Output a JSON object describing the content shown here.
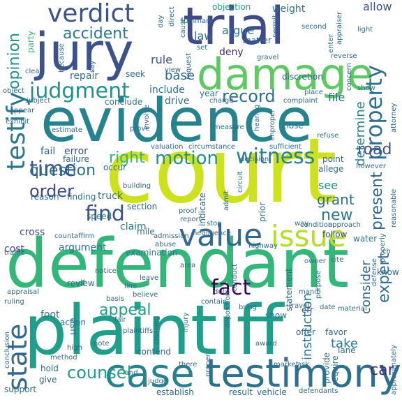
{
  "words": [
    {
      "text": "court",
      "color": "#cde11d",
      "v": false
    },
    {
      "text": "defendant",
      "color": "#32b67a",
      "v": false
    },
    {
      "text": "plaintiff",
      "color": "#1f9e89",
      "v": false
    },
    {
      "text": "evidence",
      "color": "#25838e",
      "v": false
    },
    {
      "text": "trial",
      "color": "#3e4a89",
      "v": false
    },
    {
      "text": "jury",
      "color": "#3b528b",
      "v": false
    },
    {
      "text": "damage",
      "color": "#5ec962",
      "v": false
    },
    {
      "text": "testimony",
      "color": "#2d708e",
      "v": false
    },
    {
      "text": "case",
      "color": "#26828e",
      "v": false
    },
    {
      "text": "value",
      "color": "#31688e",
      "v": false
    },
    {
      "text": "issue",
      "color": "#b5de2b",
      "v": false
    },
    {
      "text": "verdict",
      "color": "#3b528b",
      "v": false
    },
    {
      "text": "testify",
      "color": "#2a788e",
      "v": true
    },
    {
      "text": "state",
      "color": "#31688e",
      "v": true
    },
    {
      "text": "witness",
      "color": "#26828e",
      "v": false
    },
    {
      "text": "motion",
      "color": "#21918c",
      "v": false
    },
    {
      "text": "property",
      "color": "#2d708e",
      "v": true
    },
    {
      "text": "judgment",
      "color": "#21918c",
      "v": false
    },
    {
      "text": "time",
      "color": "#3b528b",
      "v": false
    },
    {
      "text": "record",
      "color": "#2d708e",
      "v": false
    },
    {
      "text": "fact",
      "color": "#440154",
      "v": false
    },
    {
      "text": "counsel",
      "color": "#1f9e89",
      "v": false
    },
    {
      "text": "appeal",
      "color": "#1f9e89",
      "v": false
    },
    {
      "text": "find",
      "color": "#3b528b",
      "v": false
    },
    {
      "text": "order",
      "color": "#3e4a89",
      "v": false
    },
    {
      "text": "question",
      "color": "#2d708e",
      "v": false
    },
    {
      "text": "accident",
      "color": "#2a788e",
      "v": false
    },
    {
      "text": "opinion",
      "color": "#21918c",
      "v": true
    },
    {
      "text": "right",
      "color": "#35b779",
      "v": false
    },
    {
      "text": "road",
      "color": "#3b528b",
      "v": false
    },
    {
      "text": "present",
      "color": "#31688e",
      "v": true
    },
    {
      "text": "expert",
      "color": "#2d708e",
      "v": true
    },
    {
      "text": "new",
      "color": "#2a788e",
      "v": false
    },
    {
      "text": "car",
      "color": "#482878",
      "v": false
    },
    {
      "text": "determine",
      "color": "#26828e",
      "v": true
    },
    {
      "text": "instruction",
      "color": "#2a788e",
      "v": true
    },
    {
      "text": "consider",
      "color": "#31688e",
      "v": true
    },
    {
      "text": "grant",
      "color": "#2d708e",
      "v": false
    },
    {
      "text": "take",
      "color": "#2a788e",
      "v": false
    },
    {
      "text": "see",
      "color": "#21918c",
      "v": false
    },
    {
      "text": "file",
      "color": "#31688e",
      "v": false
    },
    {
      "text": "argue",
      "color": "#2d708e",
      "v": false
    },
    {
      "text": "law",
      "color": "#31688e",
      "v": false
    },
    {
      "text": "rule",
      "color": "#3b528b",
      "v": false
    },
    {
      "text": "base",
      "color": "#31688e",
      "v": false
    },
    {
      "text": "weight",
      "color": "#2d708e",
      "v": false
    },
    {
      "text": "objection",
      "color": "#1f9e89",
      "v": false
    },
    {
      "text": "allow",
      "color": "#3b528b",
      "v": false
    },
    {
      "text": "cost",
      "color": "#3e4a89",
      "v": false
    },
    {
      "text": "argument",
      "color": "#2d708e",
      "v": false
    },
    {
      "text": "cross",
      "color": "#3e4a89",
      "v": false
    },
    {
      "text": "claim",
      "color": "#2a788e",
      "v": false
    },
    {
      "text": "truck",
      "color": "#2d708e",
      "v": false
    },
    {
      "text": "speed",
      "color": "#2a788e",
      "v": false
    },
    {
      "text": "party",
      "color": "#35b779",
      "v": true
    },
    {
      "text": "foot",
      "color": "#2d708e",
      "v": false
    },
    {
      "text": "use",
      "color": "#2a788e",
      "v": true
    },
    {
      "text": "drive",
      "color": "#31688e",
      "v": false
    },
    {
      "text": "include",
      "color": "#2d708e",
      "v": false
    },
    {
      "text": "repair",
      "color": "#2d708e",
      "v": false
    },
    {
      "text": "seek",
      "color": "#31688e",
      "v": false
    },
    {
      "text": "error",
      "color": "#3b528b",
      "v": false
    },
    {
      "text": "fail",
      "color": "#31688e",
      "v": false
    },
    {
      "text": "deny",
      "color": "#482878",
      "v": false
    },
    {
      "text": "matter",
      "color": "#31688e",
      "v": false
    },
    {
      "text": "discretion",
      "color": "#31688e",
      "v": false
    },
    {
      "text": "year",
      "color": "#2a788e",
      "v": false
    },
    {
      "text": "conclude",
      "color": "#2d708e",
      "v": false
    },
    {
      "text": "prior",
      "color": "#2a788e",
      "v": true
    },
    {
      "text": "allege",
      "color": "#31688e",
      "v": false
    },
    {
      "text": "point",
      "color": "#31688e",
      "v": false
    },
    {
      "text": "close",
      "color": "#2d708e",
      "v": false
    },
    {
      "text": "water",
      "color": "#2a788e",
      "v": false
    },
    {
      "text": "follow",
      "color": "#3b528b",
      "v": false
    },
    {
      "text": "section",
      "color": "#31688e",
      "v": false
    },
    {
      "text": "finding",
      "color": "#2d708e",
      "v": false
    },
    {
      "text": "reason",
      "color": "#31688e",
      "v": false
    },
    {
      "text": "failure",
      "color": "#31688e",
      "v": false
    },
    {
      "text": "occur",
      "color": "#31688e",
      "v": false
    },
    {
      "text": "mile",
      "color": "#31688e",
      "v": false
    },
    {
      "text": "review",
      "color": "#31688e",
      "v": false
    },
    {
      "text": "action",
      "color": "#2a788e",
      "v": false
    },
    {
      "text": "contend",
      "color": "#31688e",
      "v": false
    },
    {
      "text": "establish",
      "color": "#31688e",
      "v": false
    },
    {
      "text": "result",
      "color": "#31688e",
      "v": false
    },
    {
      "text": "vehicle",
      "color": "#31688e",
      "v": false
    },
    {
      "text": "require",
      "color": "#2d708e",
      "v": true
    },
    {
      "text": "provide",
      "color": "#2d708e",
      "v": true
    },
    {
      "text": "favor",
      "color": "#31688e",
      "v": false
    },
    {
      "text": "offer",
      "color": "#31688e",
      "v": false
    },
    {
      "text": "lane",
      "color": "#31688e",
      "v": false
    },
    {
      "text": "show",
      "color": "#2d708e",
      "v": false
    },
    {
      "text": "err",
      "color": "#3e4a89",
      "v": false
    },
    {
      "text": "statement",
      "color": "#31688e",
      "v": true
    },
    {
      "text": "know",
      "color": "#31688e",
      "v": false
    },
    {
      "text": "hold",
      "color": "#2d708e",
      "v": false
    },
    {
      "text": "give",
      "color": "#31688e",
      "v": false
    },
    {
      "text": "support",
      "color": "#31688e",
      "v": false
    },
    {
      "text": "examination",
      "color": "#2a788e",
      "v": false
    },
    {
      "text": "indicate",
      "color": "#31688e",
      "v": true
    },
    {
      "text": "admit",
      "color": "#31688e",
      "v": true
    },
    {
      "text": "approach",
      "color": "#31688e",
      "v": false
    },
    {
      "text": "condition",
      "color": "#31688e",
      "v": false
    },
    {
      "text": "circumstance",
      "color": "#31688e",
      "v": false
    },
    {
      "text": "valuation",
      "color": "#31688e",
      "v": false
    },
    {
      "text": "sufficient",
      "color": "#31688e",
      "v": false
    },
    {
      "text": "decision",
      "color": "#31688e",
      "v": false
    },
    {
      "text": "refuse",
      "color": "#31688e",
      "v": false
    },
    {
      "text": "however",
      "color": "#31688e",
      "v": false
    },
    {
      "text": "reasonable",
      "color": "#31688e",
      "v": true
    },
    {
      "text": "proof",
      "color": "#31688e",
      "v": false
    },
    {
      "text": "report",
      "color": "#31688e",
      "v": false
    },
    {
      "text": "building",
      "color": "#31688e",
      "v": false
    },
    {
      "text": "stop",
      "color": "#31688e",
      "v": false
    },
    {
      "text": "negligence",
      "color": "#31688e",
      "v": false
    },
    {
      "text": "crossing",
      "color": "#31688e",
      "v": true
    },
    {
      "text": "proper",
      "color": "#31688e",
      "v": true
    },
    {
      "text": "injury",
      "color": "#31688e",
      "v": true
    },
    {
      "text": "duty",
      "color": "#31688e",
      "v": false
    },
    {
      "text": "conduct",
      "color": "#31688e",
      "v": true
    },
    {
      "text": "believe",
      "color": "#31688e",
      "v": false
    },
    {
      "text": "line",
      "color": "#31688e",
      "v": false
    },
    {
      "text": "leave",
      "color": "#31688e",
      "v": false
    },
    {
      "text": "area",
      "color": "#31688e",
      "v": false
    },
    {
      "text": "notice",
      "color": "#31688e",
      "v": false
    },
    {
      "text": "basis",
      "color": "#31688e",
      "v": false
    },
    {
      "text": "fair",
      "color": "#31688e",
      "v": false
    },
    {
      "text": "plaintiffs",
      "color": "#31688e",
      "v": false
    },
    {
      "text": "contain",
      "color": "#31688e",
      "v": false
    },
    {
      "text": "bring",
      "color": "#31688e",
      "v": false
    },
    {
      "text": "travel",
      "color": "#31688e",
      "v": false
    },
    {
      "text": "date",
      "color": "#31688e",
      "v": false
    },
    {
      "text": "cite",
      "color": "#31688e",
      "v": false
    },
    {
      "text": "owner",
      "color": "#31688e",
      "v": false
    },
    {
      "text": "purpose",
      "color": "#31688e",
      "v": true
    },
    {
      "text": "material",
      "color": "#31688e",
      "v": false
    },
    {
      "text": "award",
      "color": "#31688e",
      "v": false
    },
    {
      "text": "ask",
      "color": "#31688e",
      "v": false
    },
    {
      "text": "market",
      "color": "#31688e",
      "v": false
    },
    {
      "text": "there",
      "color": "#31688e",
      "v": false
    },
    {
      "text": "judge",
      "color": "#31688e",
      "v": false
    },
    {
      "text": "land",
      "color": "#31688e",
      "v": false
    },
    {
      "text": "method",
      "color": "#31688e",
      "v": false
    },
    {
      "text": "high",
      "color": "#31688e",
      "v": false
    },
    {
      "text": "note",
      "color": "#31688e",
      "v": false
    },
    {
      "text": "defendants",
      "color": "#31688e",
      "v": false
    },
    {
      "text": "approximately",
      "color": "#31688e",
      "v": true
    },
    {
      "text": "deposition",
      "color": "#31688e",
      "v": true
    },
    {
      "text": "appraisal",
      "color": "#31688e",
      "v": false
    },
    {
      "text": "ruling",
      "color": "#31688e",
      "v": false
    },
    {
      "text": "traffic",
      "color": "#31688e",
      "v": false
    },
    {
      "text": "count",
      "color": "#31688e",
      "v": false
    },
    {
      "text": "affirm",
      "color": "#31688e",
      "v": false
    },
    {
      "text": "abuse",
      "color": "#31688e",
      "v": false
    },
    {
      "text": "admission",
      "color": "#31688e",
      "v": false
    },
    {
      "text": "highway",
      "color": "#31688e",
      "v": false
    },
    {
      "text": "circuit",
      "color": "#31688e",
      "v": true
    },
    {
      "text": "estimate",
      "color": "#31688e",
      "v": false
    },
    {
      "text": "prove",
      "color": "#31688e",
      "v": false
    },
    {
      "text": "involve",
      "color": "#31688e",
      "v": true
    },
    {
      "text": "measure",
      "color": "#31688e",
      "v": false
    },
    {
      "text": "hearing",
      "color": "#31688e",
      "v": true
    },
    {
      "text": "improper",
      "color": "#31688e",
      "v": true
    },
    {
      "text": "charge",
      "color": "#31688e",
      "v": false
    },
    {
      "text": "complaint",
      "color": "#31688e",
      "v": false
    },
    {
      "text": "place",
      "color": "#31688e",
      "v": false
    },
    {
      "text": "show",
      "color": "#31688e",
      "v": false
    },
    {
      "text": "attorney",
      "color": "#31688e",
      "v": true
    },
    {
      "text": "exhibit",
      "color": "#31688e",
      "v": false
    },
    {
      "text": "appear",
      "color": "#31688e",
      "v": false
    },
    {
      "text": "subject",
      "color": "#31688e",
      "v": false
    },
    {
      "text": "object",
      "color": "#31688e",
      "v": false
    },
    {
      "text": "clear",
      "color": "#31688e",
      "v": false
    },
    {
      "text": "say",
      "color": "#31688e",
      "v": true
    },
    {
      "text": "because",
      "color": "#31688e",
      "v": true
    },
    {
      "text": "summary",
      "color": "#31688e",
      "v": false
    },
    {
      "text": "permit",
      "color": "#31688e",
      "v": true
    },
    {
      "text": "second",
      "color": "#31688e",
      "v": false
    },
    {
      "text": "enter",
      "color": "#31688e",
      "v": true
    },
    {
      "text": "appraiser",
      "color": "#31688e",
      "v": true
    },
    {
      "text": "light",
      "color": "#31688e",
      "v": false
    },
    {
      "text": "concern",
      "color": "#31688e",
      "v": true
    },
    {
      "text": "reverse",
      "color": "#31688e",
      "v": false
    },
    {
      "text": "gravel",
      "color": "#31688e",
      "v": false
    },
    {
      "text": "request",
      "color": "#31688e",
      "v": true
    },
    {
      "text": "view",
      "color": "#31688e",
      "v": false
    },
    {
      "text": "set",
      "color": "#31688e",
      "v": false
    },
    {
      "text": "cause",
      "color": "#31688e",
      "v": true
    },
    {
      "text": "direct",
      "color": "#31688e",
      "v": true
    },
    {
      "text": "day",
      "color": "#31688e",
      "v": true
    },
    {
      "text": "manif",
      "color": "#31688e",
      "v": false
    },
    {
      "text": "defense",
      "color": "#31688e",
      "v": true
    },
    {
      "text": "ch",
      "color": "#31688e",
      "v": false
    },
    {
      "text": "conclusion",
      "color": "#31688e",
      "v": true
    },
    {
      "text": "properly",
      "color": "#31688e",
      "v": true
    },
    {
      "text": "way",
      "color": "#31688e",
      "v": false
    }
  ]
}
